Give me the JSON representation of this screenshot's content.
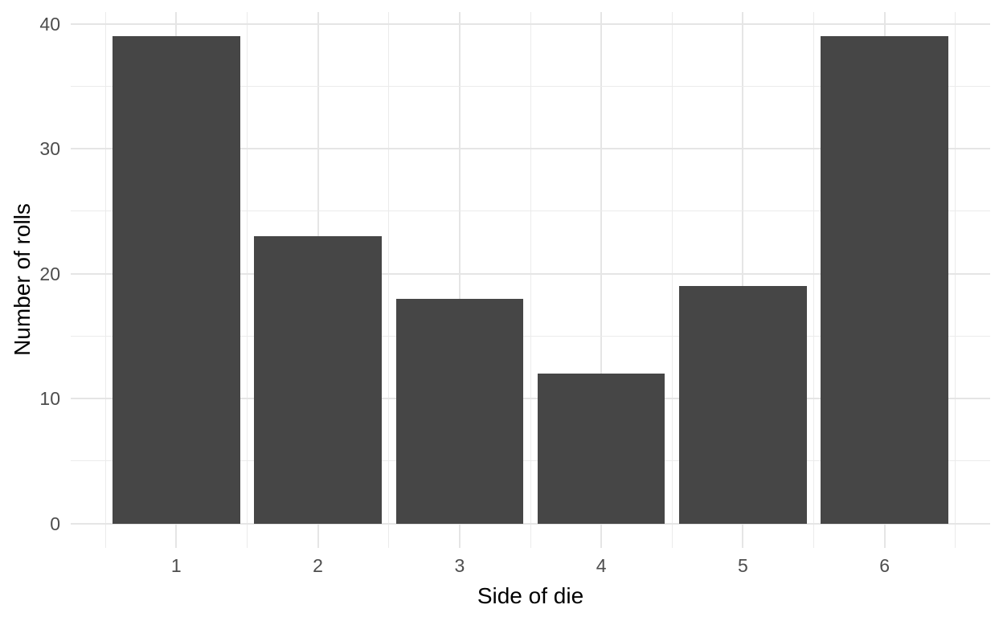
{
  "chart_data": {
    "type": "bar",
    "title": "",
    "xlabel": "Side of die",
    "ylabel": "Number of rolls",
    "categories": [
      1,
      2,
      3,
      4,
      5,
      6
    ],
    "values": [
      39,
      23,
      18,
      12,
      19,
      39
    ],
    "x": [
      1,
      2,
      3,
      4,
      5,
      6
    ],
    "bar_width": 0.9,
    "xlim": [
      0.255,
      6.745
    ],
    "ylim": [
      -1.95,
      40.95
    ],
    "x_major_ticks": [
      1,
      2,
      3,
      4,
      5,
      6
    ],
    "x_tick_labels": [
      "1",
      "2",
      "3",
      "4",
      "5",
      "6"
    ],
    "x_minor_gridlines": [
      0.5,
      1.5,
      2.5,
      3.5,
      4.5,
      5.5,
      6.5
    ],
    "y_major_ticks": [
      0,
      10,
      20,
      30,
      40
    ],
    "y_tick_labels": [
      "0",
      "10",
      "20",
      "30",
      "40"
    ],
    "y_minor_gridlines": [
      5,
      15,
      25,
      35
    ],
    "grid": true,
    "legend": "none",
    "colors": {
      "bar_fill": "#464646",
      "grid_major": "#e5e5e5",
      "grid_minor": "#ebebeb",
      "tick_label": "#4d4d4d",
      "axis_title": "#000000",
      "background": "#ffffff"
    }
  }
}
